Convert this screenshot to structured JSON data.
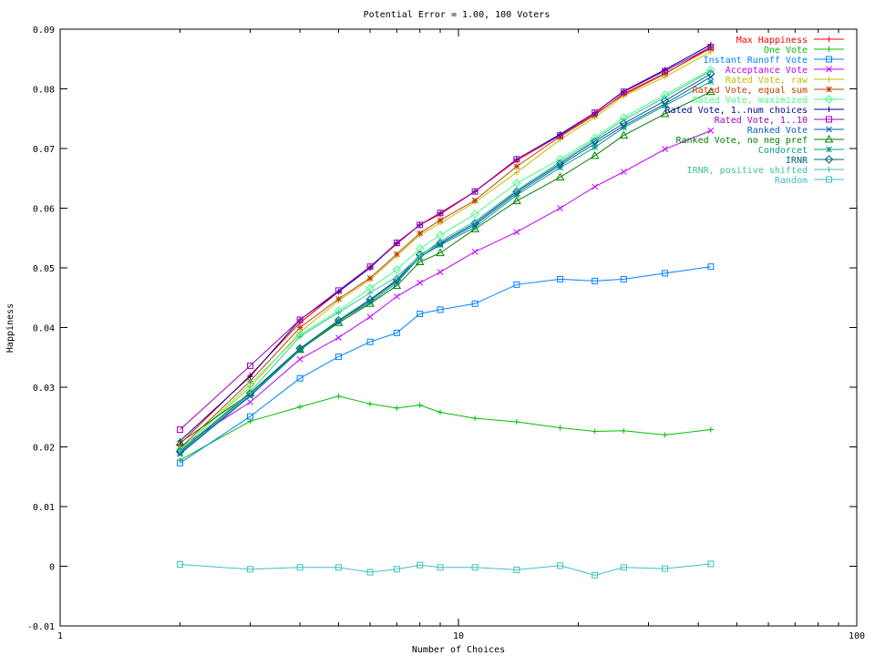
{
  "chart_data": {
    "type": "line",
    "title": "Potential Error = 1.00, 100 Voters",
    "xlabel": "Number of Choices",
    "ylabel": "Happiness",
    "xscale": "log",
    "xlim": [
      1,
      100
    ],
    "ylim": [
      -0.01,
      0.09
    ],
    "x_ticks": [
      1,
      10,
      100
    ],
    "y_ticks": [
      -0.01,
      0,
      0.01,
      0.02,
      0.03,
      0.04,
      0.05,
      0.06,
      0.07,
      0.08,
      0.09
    ],
    "y_tick_labels": [
      "-0.01",
      "0",
      "0.01",
      "0.02",
      "0.03",
      "0.04",
      "0.05",
      "0.06",
      "0.07",
      "0.08",
      "0.09"
    ],
    "grid": false,
    "legend_position": "top-right",
    "x": [
      2,
      3,
      4,
      5,
      6,
      7,
      8,
      9,
      11,
      14,
      18,
      22,
      26,
      33,
      43
    ],
    "series": [
      {
        "name": "Max Happiness",
        "color": "#ff0000",
        "marker": "plus",
        "values": [
          0.0205,
          0.032,
          0.0408,
          0.046,
          0.0502,
          0.054,
          0.0572,
          0.059,
          0.0628,
          0.068,
          0.0722,
          0.0758,
          0.079,
          0.0825,
          0.087
        ]
      },
      {
        "name": "One Vote",
        "color": "#00c000",
        "marker": "plus",
        "values": [
          0.0178,
          0.0243,
          0.0267,
          0.0285,
          0.0272,
          0.0265,
          0.027,
          0.0258,
          0.0248,
          0.0242,
          0.0232,
          0.0226,
          0.0227,
          0.022,
          0.0229
        ]
      },
      {
        "name": "Instant Runoff Vote",
        "color": "#0080ff",
        "marker": "square",
        "values": [
          0.0173,
          0.0251,
          0.0315,
          0.0351,
          0.0376,
          0.0391,
          0.0423,
          0.043,
          0.044,
          0.0472,
          0.0481,
          0.0478,
          0.0481,
          0.0491,
          0.0502
        ]
      },
      {
        "name": "Acceptance Vote",
        "color": "#c000ff",
        "marker": "x",
        "values": [
          0.02,
          0.0275,
          0.0347,
          0.0383,
          0.0418,
          0.0452,
          0.0475,
          0.0493,
          0.0527,
          0.056,
          0.06,
          0.0636,
          0.0661,
          0.0699,
          0.073
        ]
      },
      {
        "name": "Rated Vote, raw",
        "color": "#c0c000",
        "marker": "plus",
        "values": [
          0.0196,
          0.03,
          0.0392,
          0.0445,
          0.048,
          0.052,
          0.0555,
          0.0575,
          0.061,
          0.066,
          0.0715,
          0.0752,
          0.0788,
          0.082,
          0.0862
        ]
      },
      {
        "name": "Rated Vote, equal sum",
        "color": "#c04000",
        "marker": "star",
        "values": [
          0.0198,
          0.031,
          0.04,
          0.0448,
          0.0483,
          0.0523,
          0.0558,
          0.058,
          0.0613,
          0.067,
          0.072,
          0.0756,
          0.0792,
          0.0826,
          0.0868
        ]
      },
      {
        "name": "Rated Vote, maximized",
        "color": "#40ff80",
        "marker": "diamond",
        "values": [
          0.0195,
          0.0305,
          0.0388,
          0.0428,
          0.0466,
          0.0497,
          0.0532,
          0.0555,
          0.059,
          0.0642,
          0.0682,
          0.0718,
          0.0752,
          0.079,
          0.0832
        ]
      },
      {
        "name": "Rated Vote, 1..num choices",
        "color": "#0000a0",
        "marker": "plus",
        "values": [
          0.021,
          0.0318,
          0.0413,
          0.046,
          0.05,
          0.0542,
          0.0572,
          0.0592,
          0.0628,
          0.0682,
          0.0724,
          0.076,
          0.0796,
          0.0832,
          0.0874
        ]
      },
      {
        "name": "Rated Vote, 1..10",
        "color": "#a000c0",
        "marker": "square",
        "values": [
          0.0229,
          0.0336,
          0.0413,
          0.0462,
          0.0502,
          0.0542,
          0.0572,
          0.0592,
          0.0628,
          0.0682,
          0.0722,
          0.076,
          0.0795,
          0.083,
          0.087
        ]
      },
      {
        "name": "Ranked Vote",
        "color": "#0060c0",
        "marker": "x",
        "values": [
          0.0188,
          0.0285,
          0.0362,
          0.041,
          0.0445,
          0.0478,
          0.0518,
          0.054,
          0.0572,
          0.0625,
          0.0672,
          0.0708,
          0.0738,
          0.0775,
          0.082
        ]
      },
      {
        "name": "Ranked Vote, no neg pref",
        "color": "#008000",
        "marker": "triangle",
        "values": [
          0.0207,
          0.029,
          0.0363,
          0.0408,
          0.044,
          0.047,
          0.051,
          0.0525,
          0.0565,
          0.0612,
          0.0652,
          0.0688,
          0.0722,
          0.0758,
          0.0795
        ]
      },
      {
        "name": "Condorcet",
        "color": "#00a080",
        "marker": "star",
        "values": [
          0.019,
          0.0287,
          0.0363,
          0.0411,
          0.0442,
          0.0475,
          0.0518,
          0.0538,
          0.0568,
          0.0622,
          0.0668,
          0.0702,
          0.0735,
          0.0772,
          0.0812
        ]
      },
      {
        "name": "IRNR",
        "color": "#006080",
        "marker": "diamond",
        "values": [
          0.0192,
          0.029,
          0.0365,
          0.0412,
          0.0447,
          0.048,
          0.0522,
          0.0542,
          0.0575,
          0.0628,
          0.0675,
          0.0712,
          0.0742,
          0.078,
          0.0825
        ]
      },
      {
        "name": "IRNR, positive shifted",
        "color": "#40c0a0",
        "marker": "plus",
        "values": [
          0.0194,
          0.0292,
          0.0385,
          0.0425,
          0.0458,
          0.0485,
          0.052,
          0.0545,
          0.0578,
          0.063,
          0.0678,
          0.0715,
          0.0748,
          0.0786,
          0.083
        ]
      },
      {
        "name": "Random",
        "color": "#40c0c0",
        "marker": "square",
        "values": [
          0.0003,
          -0.0005,
          -0.0002,
          -0.0002,
          -0.001,
          -0.0005,
          0.0002,
          -0.0002,
          -0.0002,
          -0.0006,
          0.0001,
          -0.0015,
          -0.0002,
          -0.0004,
          0.0004
        ]
      }
    ]
  }
}
